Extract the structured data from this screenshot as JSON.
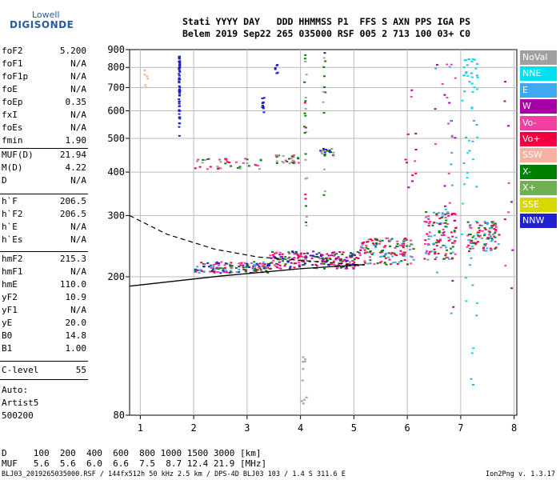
{
  "logo": {
    "line1": "Lowell",
    "line2": "DIGISONDE"
  },
  "header": {
    "row1": "Stati YYYY DAY   DDD HHMMSS P1  FFS S AXN PPS IGA PS",
    "row2": "Belem 2019 Sep22 265 035000 RSF 005 2 713 100 03+ C0"
  },
  "params": {
    "g1": [
      [
        "foF2",
        "5.200"
      ],
      [
        "foF1",
        "N/A"
      ],
      [
        "foF1p",
        "N/A"
      ],
      [
        "foE",
        "N/A"
      ],
      [
        "foEp",
        "0.35"
      ],
      [
        "fxI",
        "N/A"
      ],
      [
        "foEs",
        "N/A"
      ],
      [
        "fmin",
        "1.90"
      ]
    ],
    "g2": [
      [
        "MUF(D)",
        "21.94"
      ],
      [
        "M(D)",
        "4.22"
      ],
      [
        "D",
        "N/A"
      ]
    ],
    "g3": [
      [
        "h`F",
        "206.5"
      ],
      [
        "h`F2",
        "206.5"
      ],
      [
        "h`E",
        "N/A"
      ],
      [
        "h`Es",
        "N/A"
      ]
    ],
    "g4": [
      [
        "hmF2",
        "215.3"
      ],
      [
        "hmF1",
        "N/A"
      ],
      [
        "hmE",
        "110.0"
      ],
      [
        "yF2",
        "10.9"
      ],
      [
        "yF1",
        "N/A"
      ],
      [
        "yE",
        "20.0"
      ],
      [
        "B0",
        "14.8"
      ],
      [
        "B1",
        "1.00"
      ]
    ],
    "g5": [
      [
        "C-level",
        "55"
      ]
    ],
    "auto": [
      "Auto:",
      "Artist5",
      "500200"
    ]
  },
  "legend": [
    {
      "label": "NoVal",
      "color": "#a0a0a0"
    },
    {
      "label": "NNE",
      "color": "#00e0f0"
    },
    {
      "label": "E",
      "color": "#40a8f0"
    },
    {
      "label": "W",
      "color": "#a800a8"
    },
    {
      "label": "Vo-",
      "color": "#f040a0"
    },
    {
      "label": "Vo+",
      "color": "#f00040"
    },
    {
      "label": "SSW",
      "color": "#f8b0a0"
    },
    {
      "label": "X-",
      "color": "#008000"
    },
    {
      "label": "X+",
      "color": "#70b050"
    },
    {
      "label": "SSE",
      "color": "#d8d800"
    },
    {
      "label": "NNW",
      "color": "#2020d0"
    }
  ],
  "bottom": {
    "d_line": "D     100  200  400  600  800 1000 1500 3000 [km]",
    "muf_line": "MUF   5.6  5.6  6.0  6.6  7.5  8.7 12.4 21.9 [MHz]",
    "footer": "BLJ03_2019265035000.RSF / 144fx512h 50 kHz 2.5 km / DPS-4D BLJ03 103 / 1.4 S 311.6 E",
    "version": "Ion2Png v. 1.3.17"
  },
  "chart_data": {
    "type": "scatter",
    "xlim": [
      0.8,
      8.05
    ],
    "ylim": [
      80,
      900
    ],
    "x_ticks": [
      1,
      2,
      3,
      4,
      5,
      6,
      7,
      8
    ],
    "y_ticks": [
      80,
      200,
      300,
      400,
      500,
      600,
      700,
      800,
      900
    ],
    "y_scale": "log",
    "grid": true,
    "clusters": [
      {
        "x": [
          2.0,
          3.4
        ],
        "y": [
          206,
          222
        ],
        "n": 150,
        "colors": [
          "#f00040",
          "#f040a0",
          "#008000",
          "#2020d0",
          "#40a8f0"
        ]
      },
      {
        "x": [
          3.4,
          5.1
        ],
        "y": [
          212,
          238
        ],
        "n": 200,
        "colors": [
          "#f00040",
          "#f040a0",
          "#008000",
          "#2020d0",
          "#a800a8"
        ]
      },
      {
        "x": [
          5.1,
          6.1
        ],
        "y": [
          218,
          260
        ],
        "n": 140,
        "colors": [
          "#f00040",
          "#f040a0",
          "#008000",
          "#40a8f0"
        ]
      },
      {
        "x": [
          6.3,
          6.9
        ],
        "y": [
          225,
          310
        ],
        "n": 120,
        "colors": [
          "#f00040",
          "#f040a0",
          "#008000",
          "#40a8f0"
        ]
      },
      {
        "x": [
          7.1,
          7.7
        ],
        "y": [
          238,
          290
        ],
        "n": 100,
        "colors": [
          "#f00040",
          "#f040a0",
          "#40a8f0",
          "#008000"
        ]
      },
      {
        "x": [
          2.0,
          3.3
        ],
        "y": [
          410,
          440
        ],
        "n": 40,
        "colors": [
          "#f040a0",
          "#f00040",
          "#008000",
          "#a0a0a0"
        ]
      },
      {
        "x": [
          3.5,
          3.95
        ],
        "y": [
          425,
          450
        ],
        "n": 30,
        "colors": [
          "#f040a0",
          "#008000",
          "#a0a0a0"
        ]
      },
      {
        "x": [
          4.35,
          4.6
        ],
        "y": [
          445,
          470
        ],
        "n": 20,
        "colors": [
          "#008000",
          "#a0a0a0",
          "#2020d0"
        ]
      },
      {
        "x": [
          1.7,
          1.72
        ],
        "y": [
          510,
          870
        ],
        "n": 60,
        "colors": [
          "#2020d0"
        ]
      },
      {
        "x": [
          3.5,
          3.56
        ],
        "y": [
          770,
          820
        ],
        "n": 6,
        "colors": [
          "#2020d0"
        ]
      },
      {
        "x": [
          3.25,
          3.3
        ],
        "y": [
          580,
          665
        ],
        "n": 10,
        "colors": [
          "#2020d0"
        ]
      },
      {
        "x": [
          7.0,
          7.3
        ],
        "y": [
          85,
          870
        ],
        "n": 60,
        "colors": [
          "#40a8f0",
          "#00e0f0"
        ]
      },
      {
        "x": [
          4.05,
          4.1
        ],
        "y": [
          280,
          900
        ],
        "n": 25,
        "colors": [
          "#008000",
          "#a0a0a0",
          "#f00040"
        ]
      },
      {
        "x": [
          4.4,
          4.45
        ],
        "y": [
          300,
          890
        ],
        "n": 14,
        "colors": [
          "#2020d0",
          "#008000",
          "#a0a0a0"
        ]
      },
      {
        "x": [
          1.05,
          1.12
        ],
        "y": [
          700,
          800
        ],
        "n": 6,
        "colors": [
          "#f8b0a0"
        ]
      },
      {
        "x": [
          6.5,
          6.9
        ],
        "y": [
          130,
          860
        ],
        "n": 35,
        "colors": [
          "#a800a8",
          "#f040a0",
          "#40a8f0"
        ]
      },
      {
        "x": [
          7.8,
          7.95
        ],
        "y": [
          100,
          800
        ],
        "n": 10,
        "colors": [
          "#a800a8",
          "#40a8f0",
          "#f040a0"
        ]
      },
      {
        "x": [
          5.9,
          6.2
        ],
        "y": [
          330,
          700
        ],
        "n": 12,
        "colors": [
          "#a800a8",
          "#f040a0",
          "#f00040"
        ]
      },
      {
        "x": [
          4.0,
          4.1
        ],
        "y": [
          82,
          120
        ],
        "n": 10,
        "colors": [
          "#008000",
          "#a0a0a0"
        ]
      }
    ],
    "line_solid": [
      [
        0.8,
        188
      ],
      [
        2.5,
        201
      ],
      [
        4.0,
        211
      ],
      [
        5.2,
        217
      ]
    ],
    "line_dashed": [
      [
        0.8,
        300
      ],
      [
        1.5,
        265
      ],
      [
        2.4,
        240
      ],
      [
        3.2,
        228
      ],
      [
        4.5,
        220
      ],
      [
        5.2,
        216
      ]
    ]
  }
}
